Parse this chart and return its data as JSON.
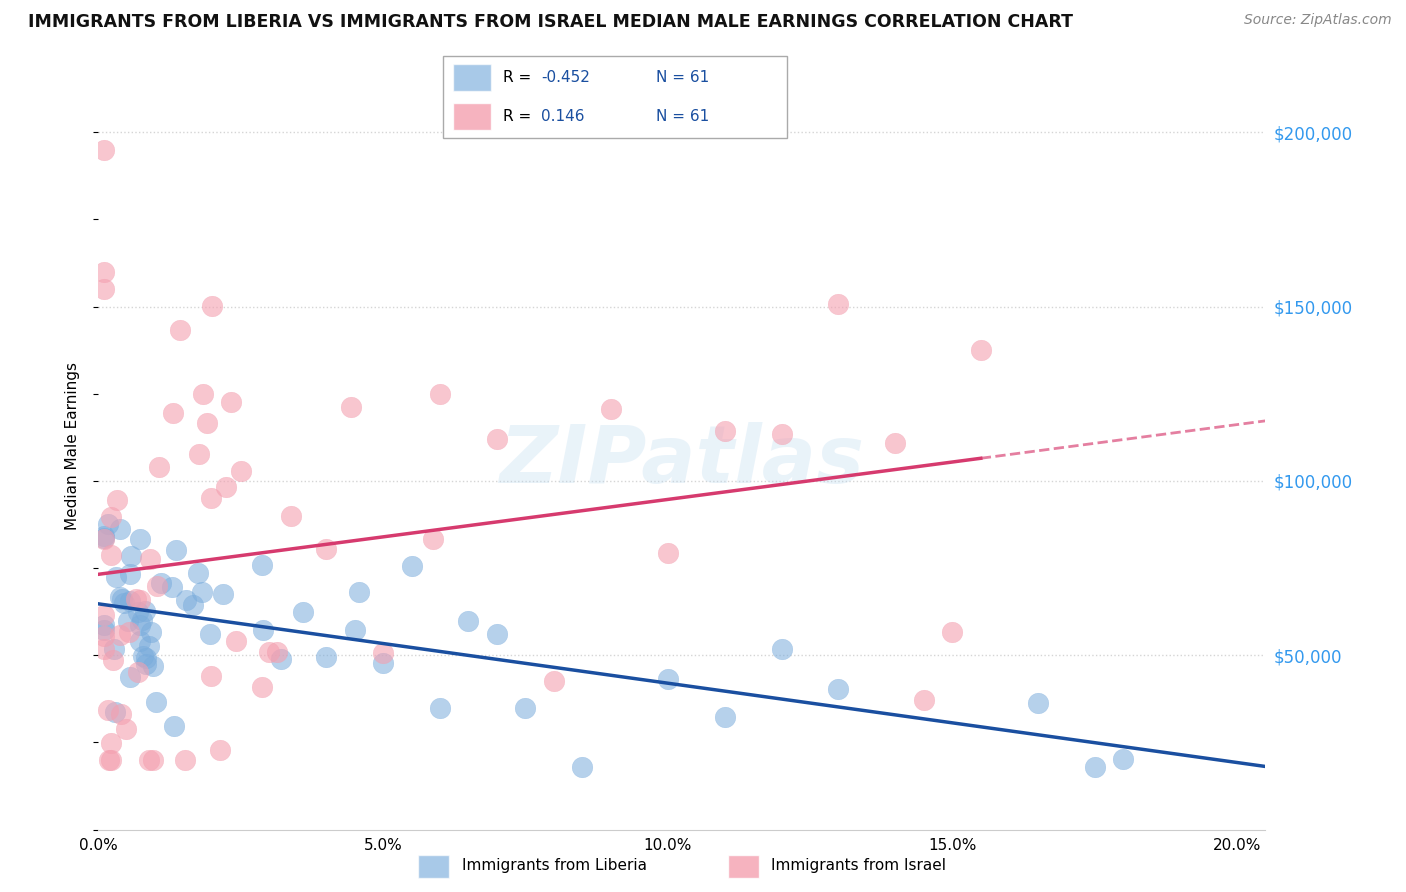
{
  "title": "IMMIGRANTS FROM LIBERIA VS IMMIGRANTS FROM ISRAEL MEDIAN MALE EARNINGS CORRELATION CHART",
  "source": "Source: ZipAtlas.com",
  "xlabel_liberia": "Immigrants from Liberia",
  "xlabel_israel": "Immigrants from Israel",
  "ylabel": "Median Male Earnings",
  "liberia_color": "#7aacdc",
  "israel_color": "#f4a0b0",
  "liberia_line_color": "#1a4fa0",
  "israel_line_color": "#d63a6e",
  "r_liberia": -0.452,
  "r_israel": 0.146,
  "n_liberia": 61,
  "n_israel": 61,
  "xmin": 0.0,
  "xmax": 0.205,
  "ymin": 0,
  "ymax": 220000,
  "ytick_vals": [
    50000,
    100000,
    150000,
    200000
  ],
  "xtick_vals": [
    0.0,
    0.05,
    0.1,
    0.15,
    0.2
  ],
  "watermark": "ZIPatlas",
  "grid_color": "#d5d5d5",
  "legend_r_color": "#1a4fa0",
  "r_liberia_str": "-0.452",
  "r_israel_str": "0.146",
  "n_str": "61"
}
